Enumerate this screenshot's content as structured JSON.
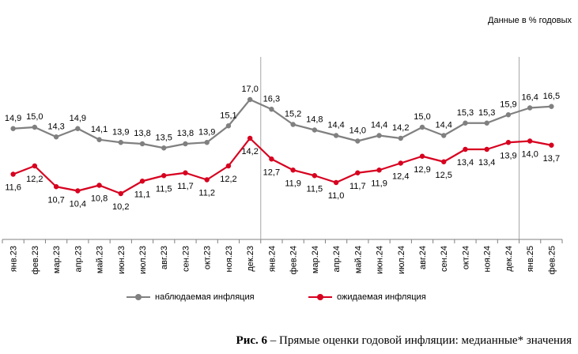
{
  "units_note": "Данные в % годовых",
  "caption": {
    "prefix": "Рис. 6",
    "text": " – Прямые оценки годовой инфляции: медианные* значения"
  },
  "colors": {
    "observed": "#808080",
    "expected": "#d7001f",
    "axis": "#808080",
    "separator": "#a6a6a6"
  },
  "chart_data": {
    "type": "line",
    "title": "Прямые оценки годовой инфляции: медианные* значения",
    "xlabel": "",
    "ylabel": "",
    "categories": [
      "янв.23",
      "фев.23",
      "мар.23",
      "апр.23",
      "май.23",
      "июн.23",
      "июл.23",
      "авг.23",
      "сен.23",
      "окт.23",
      "ноя.23",
      "дек.23",
      "янв.24",
      "фев.24",
      "мар.24",
      "апр.24",
      "май.24",
      "июн.24",
      "июл.24",
      "авг.24",
      "сен.24",
      "окт.24",
      "ноя.24",
      "дек.24",
      "янв.25",
      "фев.25"
    ],
    "series": [
      {
        "name": "наблюдаемая инфляция",
        "values": [
          14.9,
          15.0,
          14.3,
          14.9,
          14.1,
          13.9,
          13.8,
          13.5,
          13.8,
          13.9,
          15.1,
          17.0,
          16.3,
          15.2,
          14.8,
          14.4,
          14.0,
          14.4,
          14.2,
          15.0,
          14.4,
          15.3,
          15.3,
          15.9,
          16.4,
          16.5
        ],
        "labels": [
          "14,9",
          "15,0",
          "14,3",
          "14,9",
          "14,1",
          "13,9",
          "13,8",
          "13,5",
          "13,8",
          "13,9",
          "15,1",
          "17,0",
          "16,3",
          "15,2",
          "14,8",
          "14,4",
          "14,0",
          "14,4",
          "14,2",
          "15,0",
          "14,4",
          "15,3",
          "15,3",
          "15,9",
          "16,4",
          "16,5"
        ]
      },
      {
        "name": "ожидаемая инфляция",
        "values": [
          11.6,
          12.2,
          10.7,
          10.4,
          10.8,
          10.2,
          11.1,
          11.5,
          11.7,
          11.2,
          12.2,
          14.2,
          12.7,
          11.9,
          11.5,
          11.0,
          11.7,
          11.9,
          12.4,
          12.9,
          12.5,
          13.4,
          13.4,
          13.9,
          14.0,
          13.7
        ],
        "labels": [
          "11,6",
          "12,2",
          "10,7",
          "10,4",
          "10,8",
          "10,2",
          "11,1",
          "11,5",
          "11,7",
          "11,2",
          "12,2",
          "14,2",
          "12,7",
          "11,9",
          "11,5",
          "11,0",
          "11,7",
          "11,9",
          "12,4",
          "12,9",
          "12,5",
          "13,4",
          "13,4",
          "13,9",
          "14,0",
          "13,7"
        ]
      }
    ],
    "year_separators_after": [
      "дек.23",
      "дек.24"
    ],
    "legend_position": "bottom",
    "grid": false
  }
}
